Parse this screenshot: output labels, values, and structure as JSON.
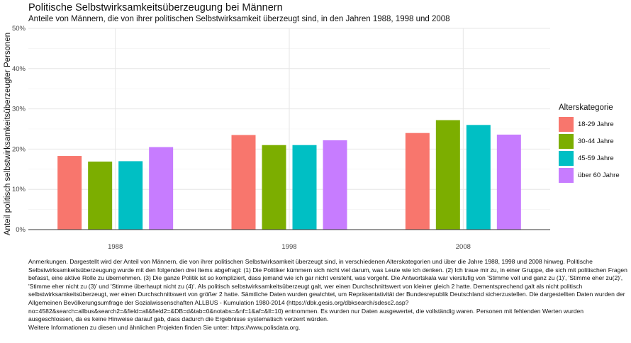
{
  "chart_data": {
    "type": "bar",
    "title": "Politische Selbstwirksamkeitsüberzeugung bei Männern",
    "subtitle": "Anteile von Männern, die von ihrer politischen Selbstwirksamkeit überzeugt sind, in den Jahren 1988, 1998 und 2008",
    "xlabel": "",
    "ylabel": "Anteil politisch selbstwirksamkeitsüberzeugter Personen",
    "categories": [
      "1988",
      "1998",
      "2008"
    ],
    "ylim": [
      0,
      0.5
    ],
    "yticks": [
      0,
      0.1,
      0.2,
      0.3,
      0.4,
      0.5
    ],
    "ytick_labels": [
      "0%",
      "10%",
      "20%",
      "30%",
      "40%",
      "50%"
    ],
    "grid": true,
    "legend": {
      "title": "Alterskategorie",
      "placement": "right"
    },
    "series": [
      {
        "name": "18-29 Jahre",
        "color": "#F8766D",
        "values": [
          0.183,
          0.235,
          0.24
        ]
      },
      {
        "name": "30-44 Jahre",
        "color": "#7CAE00",
        "values": [
          0.169,
          0.21,
          0.272
        ]
      },
      {
        "name": "45-59 Jahre",
        "color": "#00BFC4",
        "values": [
          0.17,
          0.21,
          0.26
        ]
      },
      {
        "name": "über 60 Jahre",
        "color": "#C77CFF",
        "values": [
          0.205,
          0.222,
          0.236
        ]
      }
    ]
  },
  "caption": [
    "Anmerkungen. Dargestellt wird der Anteil von Männern, die von ihrer politischen Selbstwirksamkeit überzeugt sind, in verschiedenen Alterskategorien und über die Jahre 1988, 1998 und 2008 hinweg. Politische Selbstwirksamkeitsüberzeugung wurde mit den folgenden drei Items abgefragt: (1) Die Politiker kümmern sich nicht viel darum, was Leute wie ich denken. (2) Ich traue mir zu, in einer Gruppe, die sich mit politischen Fragen befasst, eine aktive Rolle zu übernehmen. (3) Die ganze Politik ist so kompliziert, dass jemand wie ich gar nicht versteht, was vorgeht. Die Antwortskala war vierstufig von 'Stimme voll und ganz zu (1)', 'Stimme eher zu(2)', 'Stimme eher nicht zu (3)' und 'Stimme überhaupt nicht zu (4)'. Als politisch selbstwirksamkeitsüberzeugt galt, wer einen Durchschnittswert von kleiner gleich 2 hatte. Dementsprechend galt als nicht politisch selbstwirksamkeitsüberzeugt, wer einen Durchschnittswert von größer 2 hatte. Sämtliche Daten wurden gewichtet, um Repräsentativität der Bundesrepublik Deutschland sicherzustellen. Die dargestellten Daten wurden der Allgemeinen Bevölkerungsumfrage der Sozialwissenschaften ALLBUS - Kumulation 1980-2014 (https://dbk.gesis.org/dbksearch/sdesc2.asp?no=4582&search=allbus&search2=&field=all&field2=&DB=d&tab=0&notabs=&nf=1&af=&ll=10) entnommen. Es wurden nur Daten ausgewertet, die vollständig waren. Personen mit fehlenden Werten wurden ausgeschlossen, da es keine Hinweise darauf gab, dass dadurch die Ergebnisse systematisch verzerrt würden.",
    "Weitere Informationen zu diesen und ähnlichen Projekten finden Sie unter: https://www.polisdata.org."
  ]
}
